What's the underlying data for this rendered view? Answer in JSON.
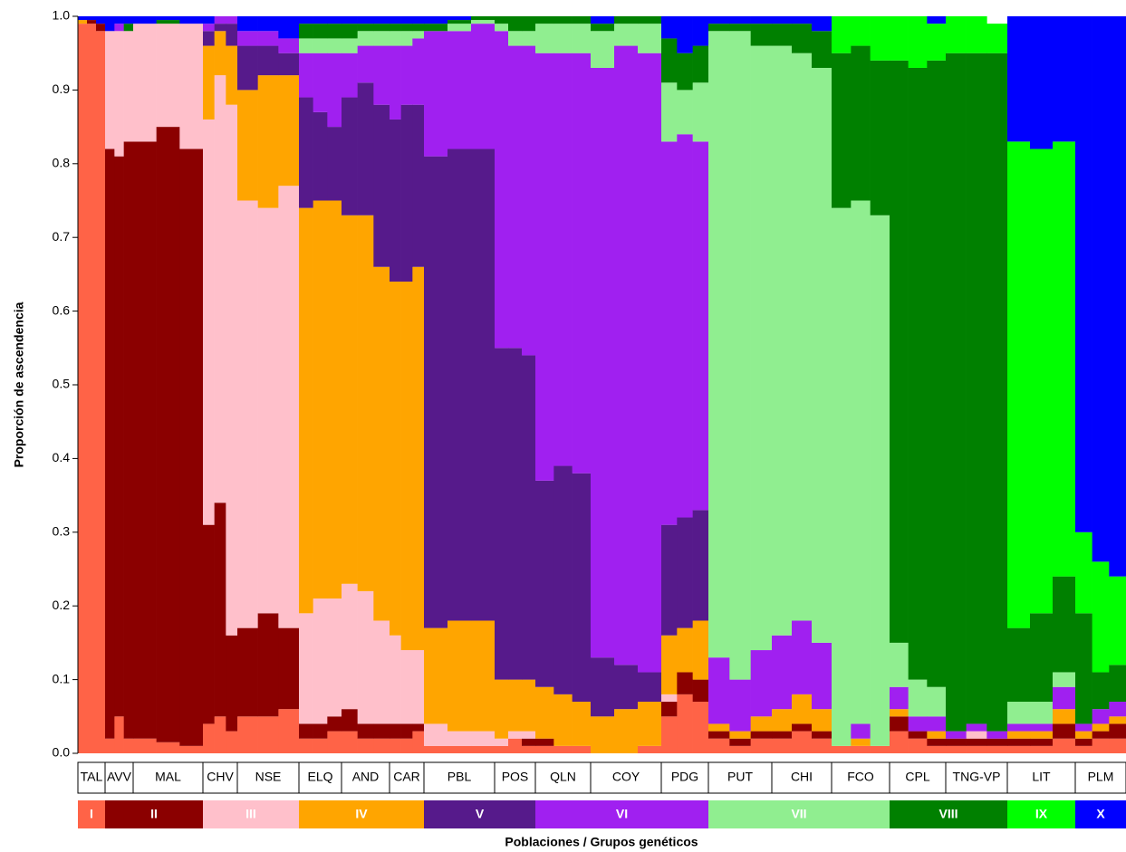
{
  "chart_data": {
    "type": "structure",
    "ylabel": "Proporción de ascendencia",
    "xlabel": "Poblaciones / Grupos genéticos",
    "ylim": [
      0,
      1
    ],
    "yticks": [
      {
        "value": 0,
        "label": "0.0"
      },
      0.1,
      0.2,
      0.3,
      0.4,
      0.5,
      0.6,
      0.7,
      0.8,
      0.9,
      {
        "value": 1,
        "label": "1.0"
      }
    ],
    "clusters": [
      {
        "name": "I",
        "color": "#ff6347"
      },
      {
        "name": "II",
        "color": "#8b0000"
      },
      {
        "name": "III",
        "color": "#ffc0cb"
      },
      {
        "name": "IV",
        "color": "#ffa500"
      },
      {
        "name": "V",
        "color": "#561a8b"
      },
      {
        "name": "VI",
        "color": "#a020f0"
      },
      {
        "name": "VII",
        "color": "#90ee90"
      },
      {
        "name": "VIII",
        "color": "#008000"
      },
      {
        "name": "IX",
        "color": "#00ff00"
      },
      {
        "name": "X",
        "color": "#0000ff"
      }
    ],
    "populations": [
      {
        "name": "TAL",
        "samples": [
          [
            0.99,
            0,
            0,
            0.005,
            0,
            0,
            0,
            0,
            0,
            0.005
          ],
          [
            0.99,
            0.005,
            0,
            0,
            0,
            0,
            0,
            0,
            0,
            0.005
          ],
          [
            0.98,
            0.01,
            0,
            0,
            0,
            0,
            0,
            0,
            0,
            0.01
          ]
        ]
      },
      {
        "name": "AVV",
        "samples": [
          [
            0.02,
            0.8,
            0.16,
            0,
            0,
            0,
            0,
            0,
            0,
            0.02
          ],
          [
            0.05,
            0.76,
            0.17,
            0,
            0,
            0.01,
            0,
            0,
            0,
            0.01
          ],
          [
            0.02,
            0.81,
            0.15,
            0,
            0,
            0,
            0,
            0.01,
            0,
            0.01
          ]
        ]
      },
      {
        "name": "MAL",
        "samples": [
          [
            0.02,
            0.81,
            0.16,
            0,
            0,
            0,
            0,
            0,
            0,
            0.01
          ],
          [
            0.015,
            0.835,
            0.14,
            0,
            0,
            0,
            0,
            0.005,
            0,
            0.005
          ],
          [
            0.01,
            0.81,
            0.17,
            0,
            0,
            0,
            0,
            0,
            0,
            0.01
          ]
        ]
      },
      {
        "name": "CHV",
        "samples": [
          [
            0.04,
            0.27,
            0.55,
            0.1,
            0.02,
            0.01,
            0,
            0,
            0,
            0.01
          ],
          [
            0.05,
            0.29,
            0.58,
            0.06,
            0.01,
            0.01,
            0,
            0,
            0,
            0
          ],
          [
            0.03,
            0.13,
            0.72,
            0.08,
            0.03,
            0.01,
            0,
            0,
            0,
            0
          ]
        ]
      },
      {
        "name": "NSE",
        "samples": [
          [
            0.05,
            0.12,
            0.58,
            0.15,
            0.06,
            0.02,
            0,
            0,
            0,
            0.02
          ],
          [
            0.05,
            0.14,
            0.55,
            0.18,
            0.04,
            0.02,
            0,
            0,
            0,
            0.02
          ],
          [
            0.06,
            0.11,
            0.6,
            0.15,
            0.03,
            0.02,
            0,
            0,
            0,
            0.03
          ]
        ]
      },
      {
        "name": "ELQ",
        "samples": [
          [
            0.02,
            0.02,
            0.15,
            0.55,
            0.15,
            0.06,
            0.02,
            0.02,
            0,
            0.01
          ],
          [
            0.02,
            0.02,
            0.17,
            0.54,
            0.12,
            0.08,
            0.02,
            0.02,
            0,
            0.01
          ],
          [
            0.03,
            0.02,
            0.16,
            0.54,
            0.1,
            0.1,
            0.02,
            0.02,
            0,
            0.01
          ]
        ]
      },
      {
        "name": "AND",
        "samples": [
          [
            0.03,
            0.03,
            0.17,
            0.5,
            0.16,
            0.06,
            0.02,
            0.02,
            0,
            0.01
          ],
          [
            0.02,
            0.02,
            0.18,
            0.51,
            0.18,
            0.05,
            0.02,
            0.01,
            0,
            0.01
          ],
          [
            0.02,
            0.02,
            0.14,
            0.48,
            0.22,
            0.08,
            0.02,
            0.01,
            0,
            0.01
          ]
        ]
      },
      {
        "name": "CAR",
        "samples": [
          [
            0.02,
            0.02,
            0.12,
            0.48,
            0.22,
            0.1,
            0.02,
            0.01,
            0,
            0.01
          ],
          [
            0.02,
            0.02,
            0.1,
            0.5,
            0.24,
            0.08,
            0.02,
            0.01,
            0,
            0.01
          ],
          [
            0.03,
            0.01,
            0.1,
            0.52,
            0.22,
            0.09,
            0.01,
            0.01,
            0,
            0.01
          ]
        ]
      },
      {
        "name": "PBL",
        "samples": [
          [
            0.01,
            0,
            0.03,
            0.13,
            0.64,
            0.17,
            0,
            0.01,
            0,
            0.01
          ],
          [
            0.01,
            0,
            0.02,
            0.15,
            0.64,
            0.16,
            0.01,
            0.005,
            0,
            0.005
          ],
          [
            0.01,
            0,
            0.02,
            0.15,
            0.64,
            0.17,
            0.005,
            0.005,
            0,
            0
          ]
        ]
      },
      {
        "name": "POS",
        "samples": [
          [
            0.01,
            0,
            0.01,
            0.08,
            0.45,
            0.43,
            0.01,
            0.01,
            0,
            0
          ],
          [
            0.02,
            0,
            0.01,
            0.07,
            0.45,
            0.41,
            0.02,
            0.02,
            0,
            0
          ],
          [
            0.01,
            0.01,
            0.01,
            0.07,
            0.44,
            0.42,
            0.02,
            0.02,
            0,
            0
          ]
        ]
      },
      {
        "name": "QLN",
        "samples": [
          [
            0.01,
            0.01,
            0,
            0.07,
            0.28,
            0.58,
            0.04,
            0.01,
            0,
            0
          ],
          [
            0.01,
            0,
            0,
            0.07,
            0.31,
            0.56,
            0.04,
            0.01,
            0,
            0
          ],
          [
            0.01,
            0,
            0,
            0.06,
            0.31,
            0.57,
            0.04,
            0.01,
            0,
            0
          ]
        ]
      },
      {
        "name": "COY",
        "samples": [
          [
            0,
            0,
            0,
            0.05,
            0.08,
            0.8,
            0.05,
            0.01,
            0,
            0.01
          ],
          [
            0,
            0,
            0,
            0.06,
            0.06,
            0.84,
            0.03,
            0.01,
            0,
            0
          ],
          [
            0.01,
            0,
            0,
            0.06,
            0.04,
            0.84,
            0.04,
            0.01,
            0,
            0
          ]
        ]
      },
      {
        "name": "PDG",
        "samples": [
          [
            0.05,
            0.02,
            0.01,
            0.08,
            0.15,
            0.52,
            0.08,
            0.06,
            0,
            0.03
          ],
          [
            0.08,
            0.03,
            0,
            0.06,
            0.15,
            0.52,
            0.06,
            0.05,
            0,
            0.05
          ],
          [
            0.07,
            0.03,
            0,
            0.08,
            0.15,
            0.5,
            0.08,
            0.05,
            0,
            0.04
          ]
        ]
      },
      {
        "name": "PUT",
        "samples": [
          [
            0.02,
            0.01,
            0,
            0.01,
            0,
            0.09,
            0.85,
            0.01,
            0,
            0.01
          ],
          [
            0.01,
            0.01,
            0,
            0.01,
            0,
            0.07,
            0.88,
            0.01,
            0,
            0.01
          ],
          [
            0.02,
            0.01,
            0,
            0.02,
            0,
            0.09,
            0.82,
            0.03,
            0,
            0.01
          ]
        ]
      },
      {
        "name": "CHI",
        "samples": [
          [
            0.02,
            0.01,
            0,
            0.03,
            0,
            0.1,
            0.8,
            0.03,
            0,
            0.01
          ],
          [
            0.03,
            0.01,
            0,
            0.04,
            0,
            0.1,
            0.77,
            0.04,
            0,
            0.01
          ],
          [
            0.02,
            0.01,
            0,
            0.03,
            0,
            0.09,
            0.78,
            0.05,
            0,
            0.02
          ]
        ]
      },
      {
        "name": "FCO",
        "samples": [
          [
            0.01,
            0,
            0,
            0,
            0,
            0,
            0.73,
            0.21,
            0.05,
            0
          ],
          [
            0.01,
            0,
            0,
            0.01,
            0,
            0.02,
            0.71,
            0.21,
            0.04,
            0
          ],
          [
            0.01,
            0,
            0,
            0,
            0,
            0,
            0.72,
            0.21,
            0.06,
            0
          ]
        ]
      },
      {
        "name": "CPL",
        "samples": [
          [
            0.03,
            0.02,
            0,
            0.01,
            0,
            0.03,
            0.06,
            0.79,
            0.06,
            0
          ],
          [
            0.02,
            0.01,
            0,
            0,
            0,
            0.02,
            0.05,
            0.83,
            0.07,
            0
          ],
          [
            0.01,
            0.01,
            0,
            0.01,
            0,
            0.02,
            0.04,
            0.85,
            0.05,
            0.01
          ]
        ]
      },
      {
        "name": "TNG-VP",
        "samples": [
          [
            0.01,
            0.01,
            0,
            0,
            0,
            0.01,
            0,
            0.92,
            0.05,
            0
          ],
          [
            0.01,
            0.01,
            0.01,
            0,
            0,
            0.01,
            0,
            0.91,
            0.05,
            0
          ],
          [
            0.01,
            0.01,
            0,
            0,
            0,
            0.01,
            0,
            0.92,
            0.04,
            0
          ]
        ]
      },
      {
        "name": "LIT",
        "samples": [
          [
            0.01,
            0.01,
            0,
            0.01,
            0,
            0.01,
            0.03,
            0.1,
            0.66,
            0.17
          ],
          [
            0.01,
            0.01,
            0,
            0.01,
            0,
            0.01,
            0.03,
            0.12,
            0.63,
            0.18
          ],
          [
            0.02,
            0.02,
            0,
            0.02,
            0,
            0.03,
            0.02,
            0.13,
            0.59,
            0.17
          ]
        ]
      },
      {
        "name": "PLM",
        "samples": [
          [
            0.01,
            0.01,
            0,
            0.01,
            0,
            0.01,
            0,
            0.15,
            0.11,
            0.7
          ],
          [
            0.02,
            0.01,
            0,
            0.01,
            0,
            0.02,
            0,
            0.05,
            0.15,
            0.74
          ],
          [
            0.02,
            0.02,
            0,
            0.01,
            0,
            0.02,
            0,
            0.05,
            0.12,
            0.76
          ]
        ]
      }
    ]
  }
}
